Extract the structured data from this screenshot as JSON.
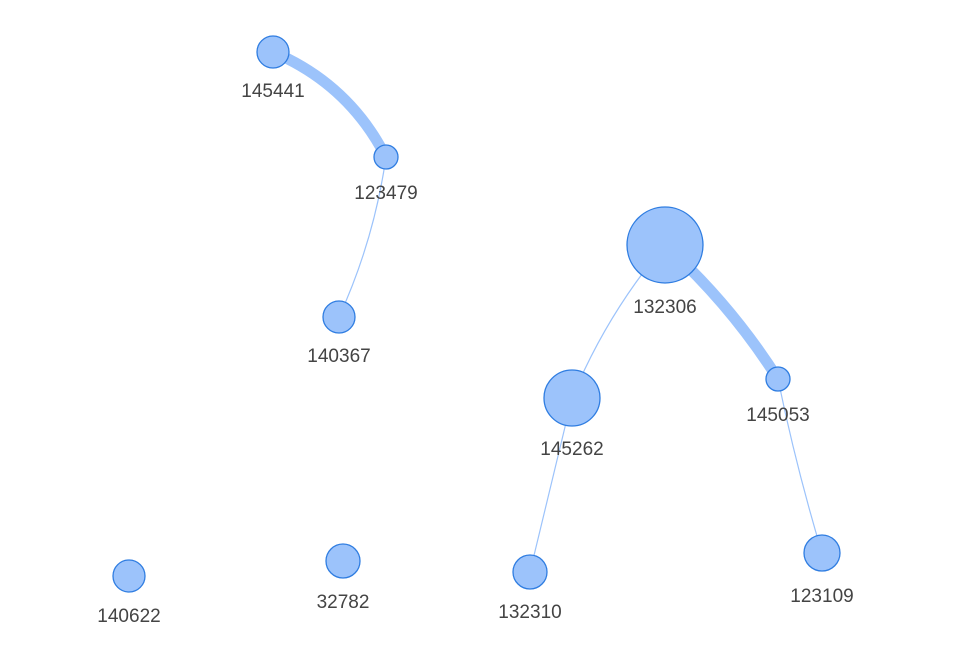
{
  "graph": {
    "node_color": "#9cc3fb",
    "node_stroke_color": "#2f7de1",
    "edge_color": "#9cc3fb",
    "label_color": "#444444",
    "nodes": [
      {
        "id": "145441",
        "label": "145441",
        "weight": 2
      },
      {
        "id": "123479",
        "label": "123479",
        "weight": 1
      },
      {
        "id": "140367",
        "label": "140367",
        "weight": 2
      },
      {
        "id": "132306",
        "label": "132306",
        "weight": 10
      },
      {
        "id": "145053",
        "label": "145053",
        "weight": 1
      },
      {
        "id": "145262",
        "label": "145262",
        "weight": 6
      },
      {
        "id": "132310",
        "label": "132310",
        "weight": 2
      },
      {
        "id": "123109",
        "label": "123109",
        "weight": 2
      },
      {
        "id": "140622",
        "label": "140622",
        "weight": 2
      },
      {
        "id": "32782",
        "label": "32782",
        "weight": 2
      }
    ],
    "edges": [
      {
        "source": "145441",
        "target": "123479",
        "weight": 9
      },
      {
        "source": "123479",
        "target": "140367",
        "weight": 1
      },
      {
        "source": "132306",
        "target": "145053",
        "weight": 9
      },
      {
        "source": "132306",
        "target": "145262",
        "weight": 1
      },
      {
        "source": "145262",
        "target": "132310",
        "weight": 1
      },
      {
        "source": "145053",
        "target": "123109",
        "weight": 1
      }
    ]
  }
}
